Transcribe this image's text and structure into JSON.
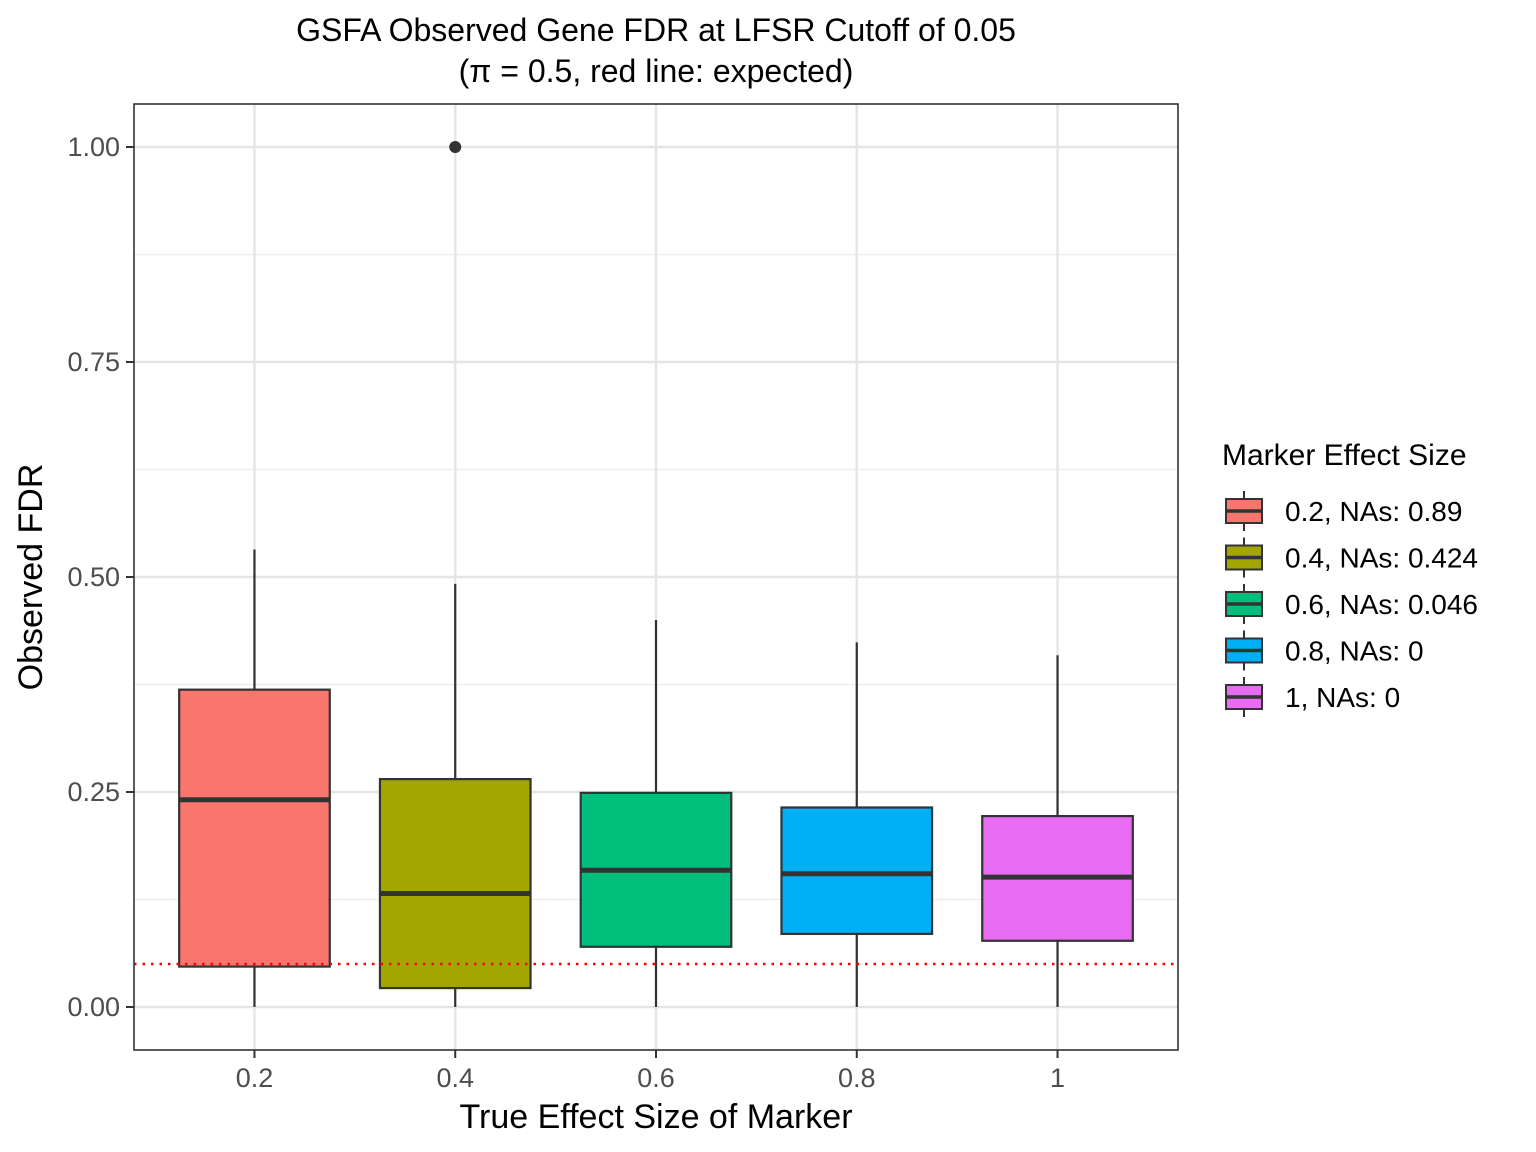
{
  "chart_data": {
    "type": "box",
    "title": "GSFA Observed Gene FDR at LFSR Cutoff of 0.05",
    "subtitle": "(π = 0.5, red line: expected)",
    "xlabel": "True Effect Size of Marker",
    "ylabel": "Observed FDR",
    "ylim": [
      -0.05,
      1.05
    ],
    "y_ticks": [
      "0.00",
      "0.25",
      "0.50",
      "0.75",
      "1.00"
    ],
    "y_tick_values": [
      0,
      0.25,
      0.5,
      0.75,
      1.0
    ],
    "categories": [
      "0.2",
      "0.4",
      "0.6",
      "0.8",
      "1"
    ],
    "reference_line": {
      "y": 0.05,
      "color": "#FF0000",
      "style": "dotted"
    },
    "grid": true,
    "legend": {
      "title": "Marker Effect Size",
      "placement": "right",
      "entries": [
        "0.2, NAs: 0.89",
        "0.4, NAs: 0.424",
        "0.6, NAs: 0.046",
        "0.8, NAs: 0",
        "1, NAs: 0"
      ]
    },
    "series": [
      {
        "category": "0.2",
        "color": "#F8766D",
        "whisker_low": 0.0,
        "q1": 0.047,
        "median": 0.241,
        "q3": 0.369,
        "whisker_high": 0.532,
        "outliers": []
      },
      {
        "category": "0.4",
        "color": "#A3A500",
        "whisker_low": 0.0,
        "q1": 0.022,
        "median": 0.132,
        "q3": 0.265,
        "whisker_high": 0.492,
        "outliers": [
          1.0
        ]
      },
      {
        "category": "0.6",
        "color": "#00BF7D",
        "whisker_low": 0.0,
        "q1": 0.07,
        "median": 0.159,
        "q3": 0.249,
        "whisker_high": 0.45,
        "outliers": []
      },
      {
        "category": "0.8",
        "color": "#00B0F6",
        "whisker_low": 0.0,
        "q1": 0.085,
        "median": 0.155,
        "q3": 0.232,
        "whisker_high": 0.424,
        "outliers": []
      },
      {
        "category": "1",
        "color": "#E76BF3",
        "whisker_low": 0.0,
        "q1": 0.077,
        "median": 0.151,
        "q3": 0.222,
        "whisker_high": 0.409,
        "outliers": []
      }
    ]
  }
}
